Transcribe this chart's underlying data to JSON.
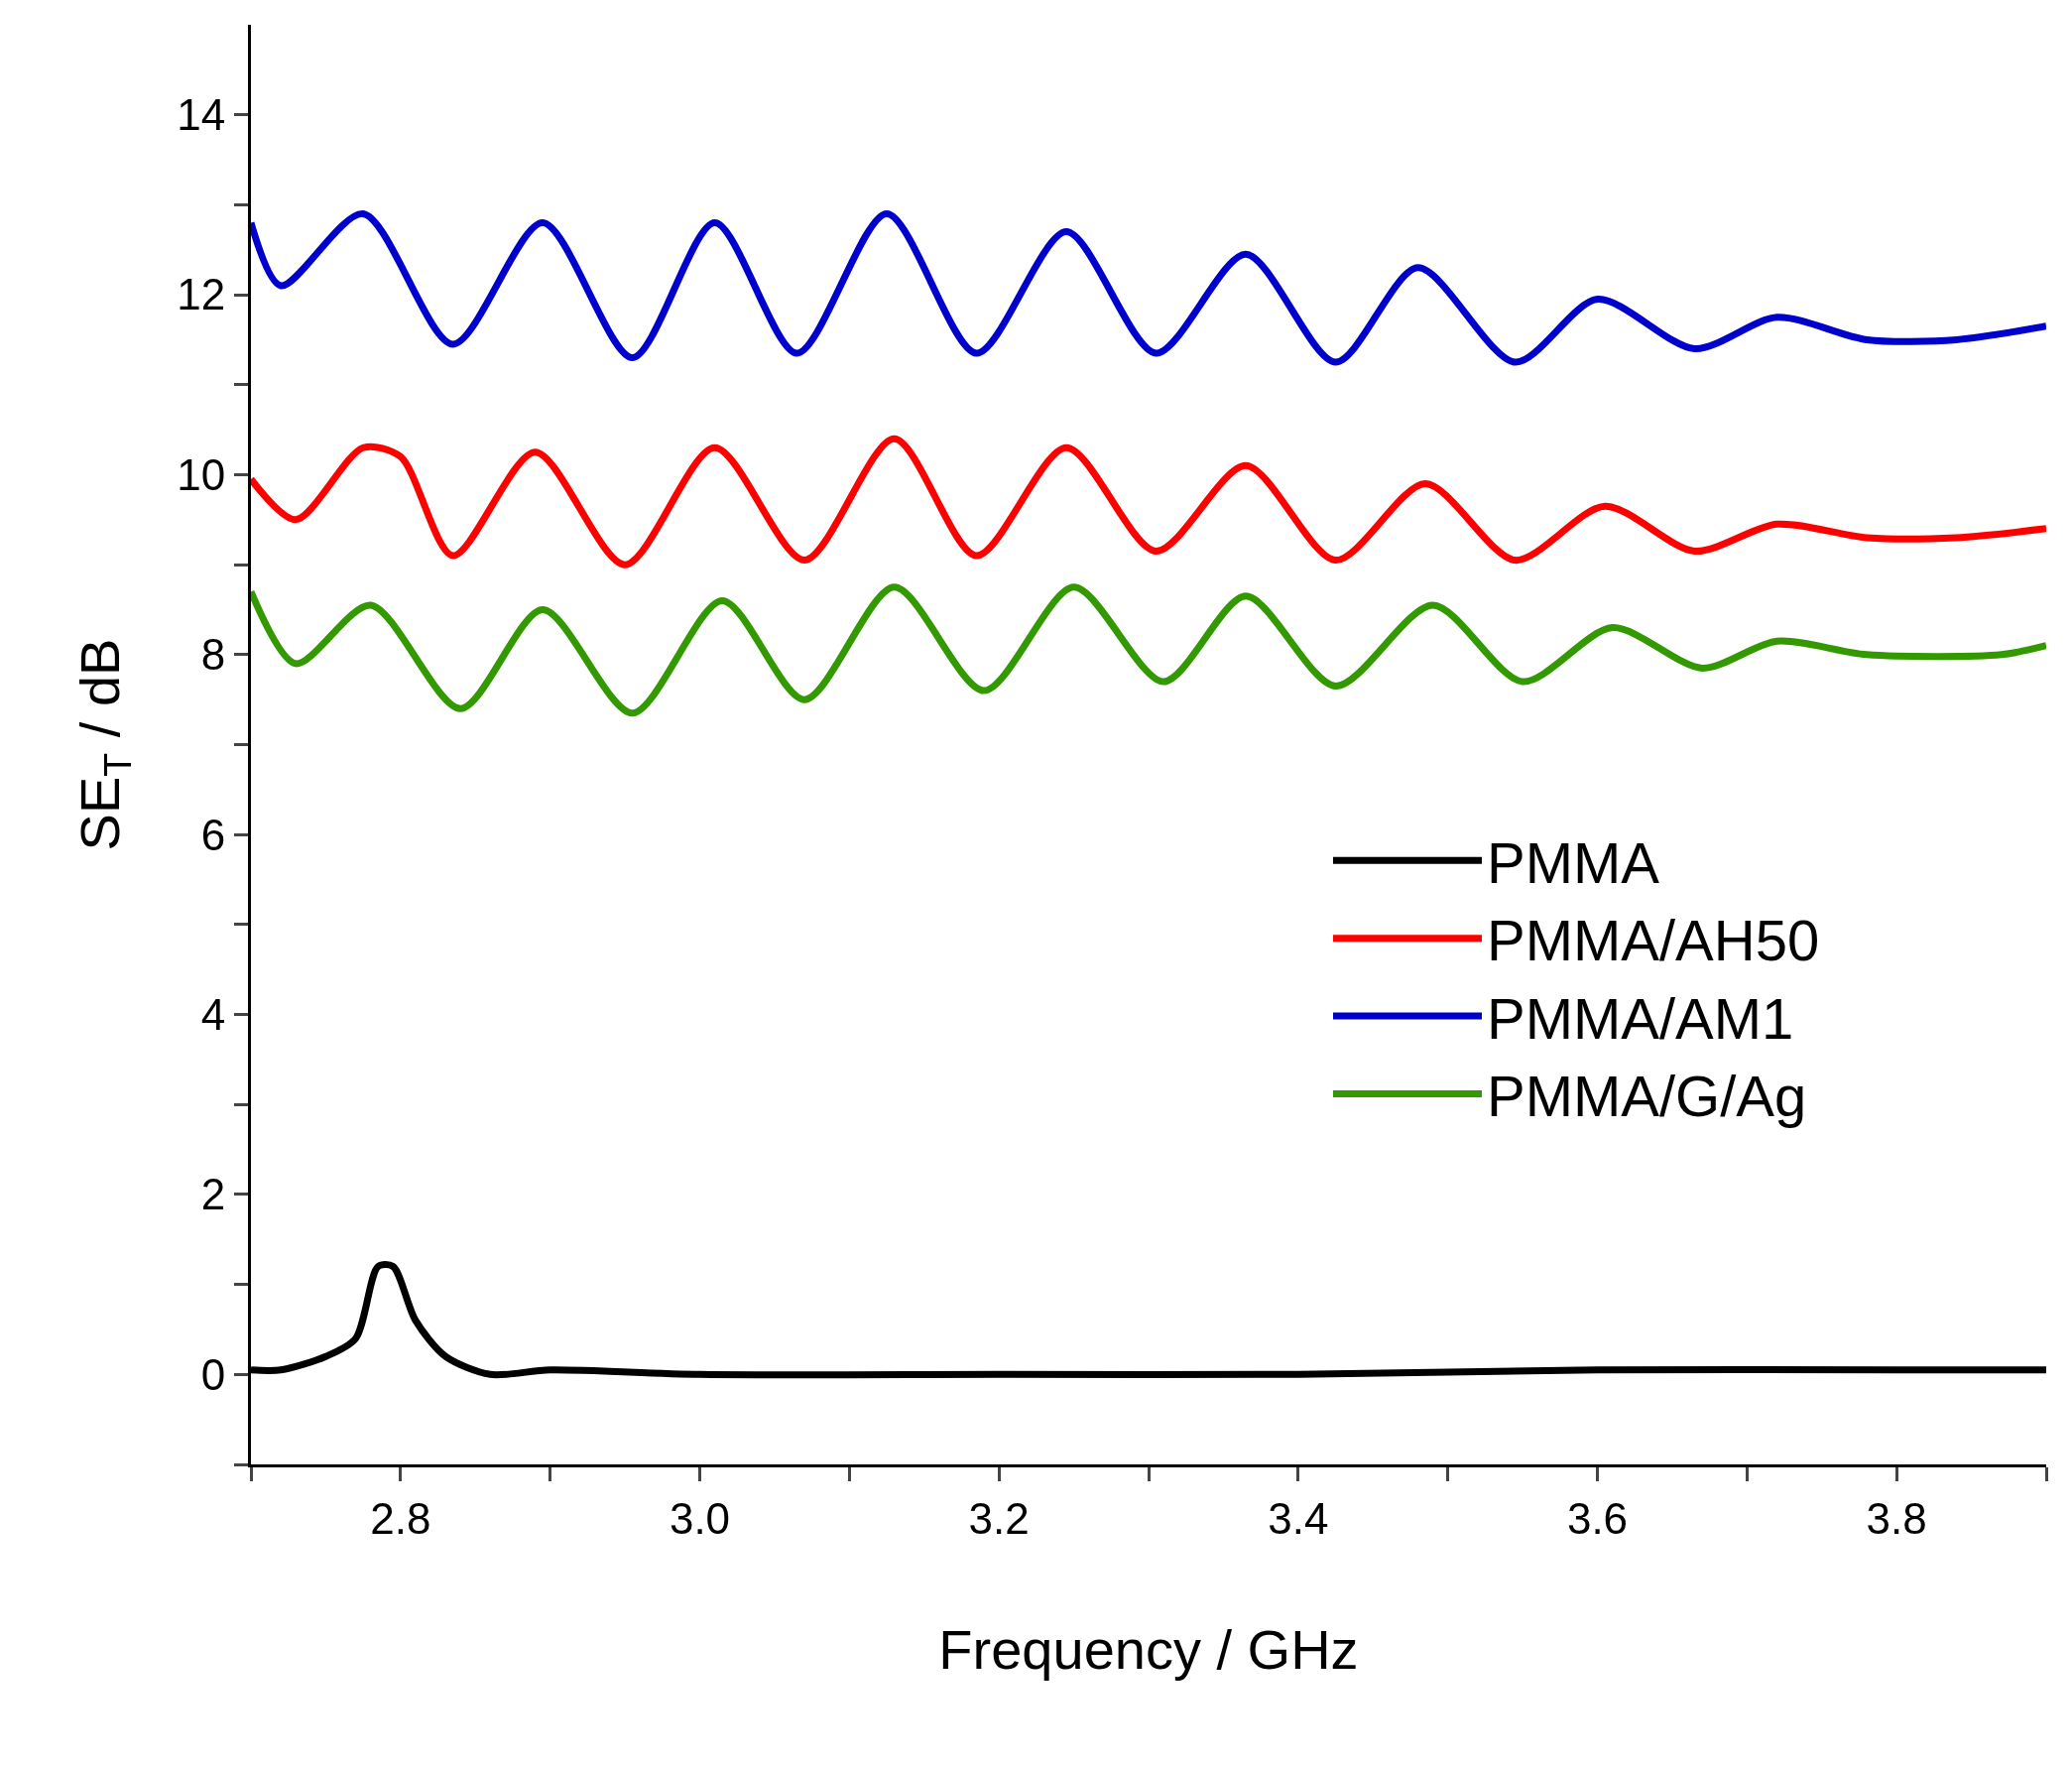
{
  "chart_data": {
    "type": "line",
    "xlabel": "Frequency / GHz",
    "ylabel": "SE$_{T}$ / dB",
    "xlim": [
      2.7,
      3.9
    ],
    "ylim": [
      -1,
      15
    ],
    "xticks": [
      {
        "value": 2.7,
        "label": null
      },
      2.8,
      {
        "value": 2.9,
        "label": null
      },
      {
        "value": 3.0,
        "label": "3.0"
      },
      {
        "value": 3.1,
        "label": null
      },
      3.2,
      {
        "value": 3.3,
        "label": null
      },
      3.4,
      {
        "value": 3.5,
        "label": null
      },
      3.6,
      {
        "value": 3.7,
        "label": null
      },
      3.8,
      {
        "value": 3.9,
        "label": null
      }
    ],
    "yticks": [
      {
        "value": -1,
        "label": null
      },
      0,
      {
        "value": 1,
        "label": null
      },
      2,
      {
        "value": 3,
        "label": null
      },
      4,
      {
        "value": 5,
        "label": null
      },
      6,
      {
        "value": 7,
        "label": null
      },
      8,
      {
        "value": 9,
        "label": null
      },
      10,
      {
        "value": 11,
        "label": null
      },
      12,
      {
        "value": 13,
        "label": null
      },
      14
    ],
    "grid": false,
    "legend": "right",
    "marker": "none",
    "line_style": "solid",
    "series": [
      {
        "name": "PMMA",
        "color": "#000000",
        "x": [
          2.7,
          2.72,
          2.75,
          2.77,
          2.785,
          2.795,
          2.81,
          2.83,
          2.86,
          2.9,
          3.0,
          3.2,
          3.4,
          3.6,
          3.8,
          3.9
        ],
        "values": [
          0.05,
          0.05,
          0.2,
          0.4,
          1.2,
          1.2,
          0.6,
          0.2,
          0.0,
          0.05,
          0.0,
          0.0,
          0.0,
          0.05,
          0.05,
          0.05
        ]
      },
      {
        "name": "PMMA/AH50",
        "color": "#ff0000",
        "x": [
          2.7,
          2.73,
          2.775,
          2.8,
          2.835,
          2.89,
          2.95,
          3.01,
          3.07,
          3.13,
          3.185,
          3.245,
          3.305,
          3.365,
          3.425,
          3.485,
          3.545,
          3.605,
          3.665,
          3.72,
          3.78,
          3.84,
          3.9
        ],
        "values": [
          9.95,
          9.5,
          10.3,
          10.2,
          9.1,
          10.25,
          9.0,
          10.3,
          9.05,
          10.4,
          9.1,
          10.3,
          9.15,
          10.1,
          9.05,
          9.9,
          9.05,
          9.65,
          9.15,
          9.45,
          9.3,
          9.3,
          9.4
        ]
      },
      {
        "name": "PMMA/AM1",
        "color": "#0000cc",
        "x": [
          2.7,
          2.72,
          2.775,
          2.835,
          2.895,
          2.955,
          3.01,
          3.065,
          3.125,
          3.185,
          3.245,
          3.305,
          3.365,
          3.425,
          3.48,
          3.545,
          3.6,
          3.665,
          3.72,
          3.78,
          3.84,
          3.9
        ],
        "values": [
          12.8,
          12.1,
          12.9,
          11.45,
          12.8,
          11.3,
          12.8,
          11.35,
          12.9,
          11.35,
          12.7,
          11.35,
          12.45,
          11.25,
          12.3,
          11.25,
          11.95,
          11.4,
          11.75,
          11.5,
          11.5,
          11.65
        ]
      },
      {
        "name": "PMMA/G/Ag",
        "color": "#339900",
        "x": [
          2.7,
          2.73,
          2.78,
          2.84,
          2.895,
          2.955,
          3.015,
          3.07,
          3.13,
          3.19,
          3.25,
          3.31,
          3.365,
          3.425,
          3.49,
          3.55,
          3.61,
          3.67,
          3.72,
          3.78,
          3.87,
          3.9
        ],
        "values": [
          8.7,
          7.9,
          8.55,
          7.4,
          8.5,
          7.35,
          8.6,
          7.5,
          8.75,
          7.6,
          8.75,
          7.7,
          8.65,
          7.65,
          8.55,
          7.7,
          8.3,
          7.85,
          8.15,
          8.0,
          8.0,
          8.1
        ]
      }
    ]
  }
}
